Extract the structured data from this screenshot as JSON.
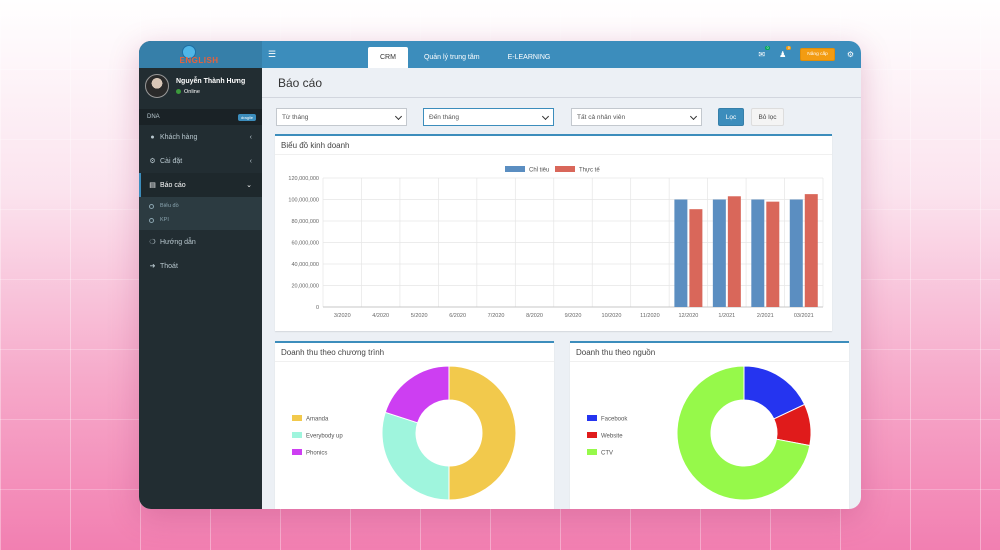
{
  "sidebar": {
    "logo_text": "ENGLISH",
    "user_name": "Nguyễn Thành Hưng",
    "user_status": "Online",
    "dna_label": "DNA",
    "dna_badge": "dragile",
    "menu": [
      {
        "label": "Khách hàng",
        "icon": "users-icon"
      },
      {
        "label": "Cài đặt",
        "icon": "cogs-icon"
      },
      {
        "label": "Báo cáo",
        "icon": "bar-chart-icon"
      },
      {
        "label": "Hướng dẫn",
        "icon": "life-ring-icon"
      },
      {
        "label": "Thoát",
        "icon": "sign-out-icon"
      }
    ],
    "submenu": [
      {
        "label": "Biểu đồ"
      },
      {
        "label": "KPI"
      }
    ]
  },
  "topbar": {
    "tabs": [
      "CRM",
      "Quản lý trung tâm",
      "E-LEARNING"
    ],
    "mail_badge": "0",
    "people_badge": "0",
    "upgrade_label": "Nâng cấp"
  },
  "page": {
    "title": "Báo cáo",
    "filters": {
      "from_month": "Từ tháng",
      "to_month": "Đến tháng",
      "staff": "Tất cả nhân viên",
      "filter_btn": "Lọc",
      "clear_btn": "Bỏ lọc"
    }
  },
  "colors": {
    "primary": "#3c8dbc",
    "target": "#5b8ec1",
    "actual": "#d9675a"
  },
  "chart_data": [
    {
      "type": "bar",
      "title": "Biểu đồ kinh doanh",
      "categories": [
        "3/2020",
        "4/2020",
        "5/2020",
        "6/2020",
        "7/2020",
        "8/2020",
        "9/2020",
        "10/2020",
        "11/2020",
        "12/2020",
        "1/2021",
        "2/2021",
        "03/2021"
      ],
      "series": [
        {
          "name": "Chỉ tiêu",
          "color": "#5b8ec1",
          "values": [
            0,
            0,
            0,
            0,
            0,
            0,
            0,
            0,
            0,
            100000000,
            100000000,
            100000000,
            100000000
          ]
        },
        {
          "name": "Thực tế",
          "color": "#d9675a",
          "values": [
            0,
            0,
            0,
            0,
            0,
            0,
            0,
            0,
            0,
            91000000,
            103000000,
            98000000,
            105000000
          ]
        }
      ],
      "y_ticks": [
        "0",
        "20,000,000",
        "40,000,000",
        "60,000,000",
        "80,000,000",
        "100,000,000",
        "120,000,000"
      ],
      "ylim": [
        0,
        120000000
      ],
      "grid": true,
      "legend": "top-center"
    },
    {
      "type": "pie",
      "title": "Doanh thu theo chương trình",
      "labels": [
        "Amanda",
        "Everybody up",
        "Phonics"
      ],
      "values": [
        50,
        30,
        20
      ],
      "colors": [
        "#f2c94c",
        "#9ff5dd",
        "#cd3ef2"
      ],
      "legend": "left"
    },
    {
      "type": "pie",
      "title": "Doanh thu theo nguồn",
      "labels": [
        "Facebook",
        "Website",
        "CTV"
      ],
      "values": [
        18,
        10,
        72
      ],
      "colors": [
        "#2534f0",
        "#e01b1b",
        "#96f94a"
      ],
      "legend": "left"
    }
  ]
}
